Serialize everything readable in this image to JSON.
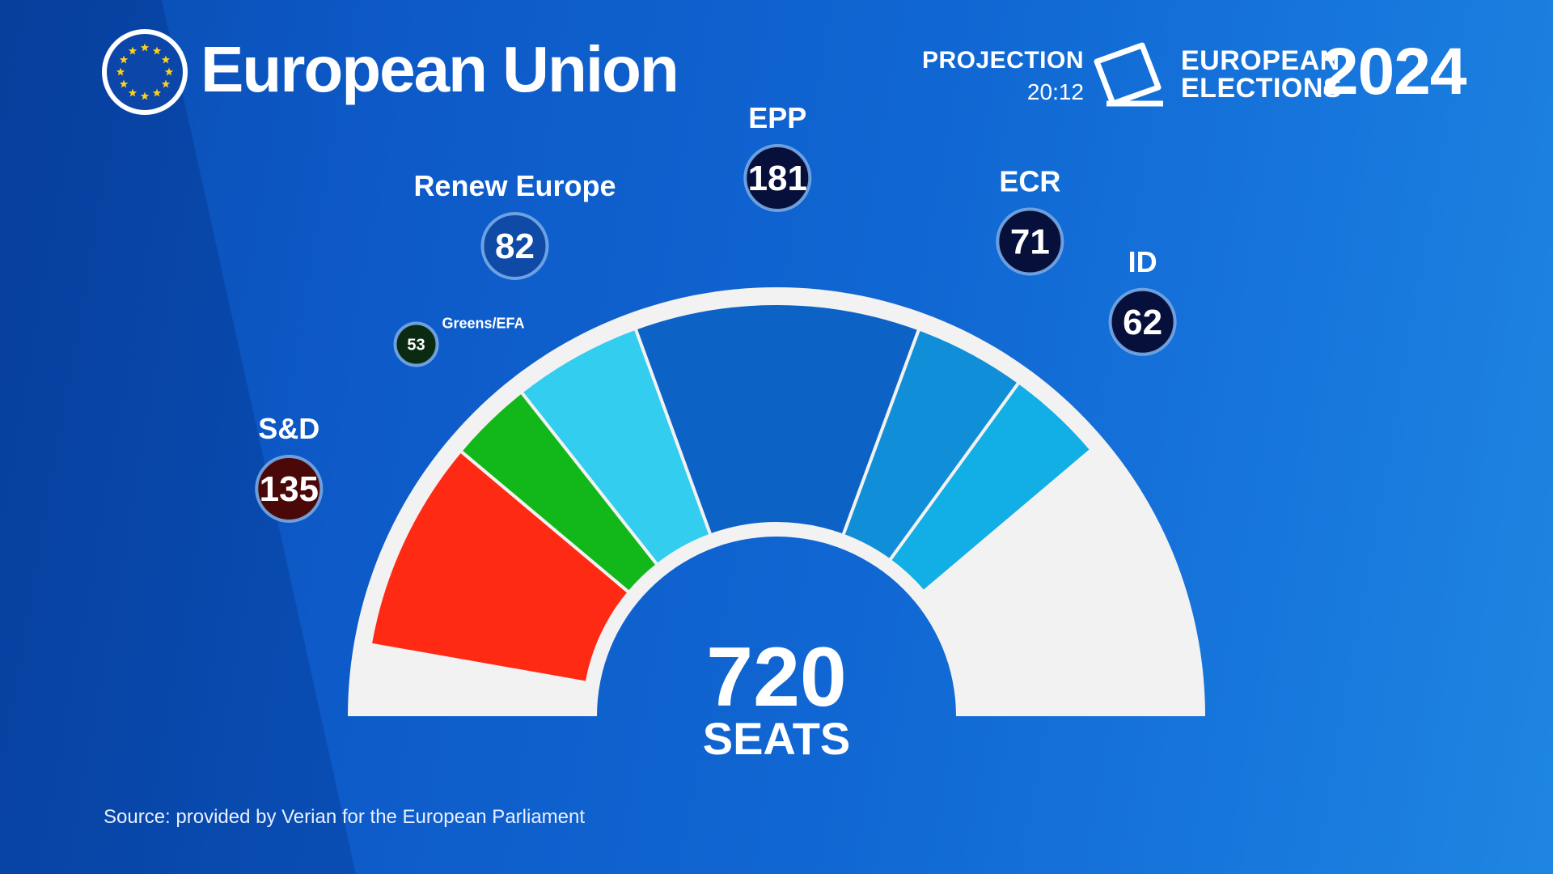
{
  "header": {
    "title": "European Union",
    "projection_label": "PROJECTION",
    "projection_time": "20:12",
    "elections_line1": "EUROPEAN",
    "elections_line2": "ELECTIONS",
    "year": "2024"
  },
  "source": "Source: provided by Verian for the European Parliament",
  "chart_data": {
    "type": "pie",
    "subtype": "parliament-hemicycle",
    "total_seats": 720,
    "center_value": "720",
    "center_label": "SEATS",
    "series": [
      {
        "name": "S&D",
        "value": 135,
        "color": "#ff2a14",
        "badge_color": "#4a0808"
      },
      {
        "name": "Greens/EFA",
        "value": 53,
        "color": "#12b81a",
        "badge_color": "#0b2a12"
      },
      {
        "name": "Renew Europe",
        "value": 82,
        "color": "#33cdf0",
        "badge_color": "#0e4aa6"
      },
      {
        "name": "EPP",
        "value": 181,
        "color": "#0d62c6",
        "badge_color": "#07103a"
      },
      {
        "name": "ECR",
        "value": 71,
        "color": "#108fd8",
        "badge_color": "#07103a"
      },
      {
        "name": "ID",
        "value": 62,
        "color": "#12aee6",
        "badge_color": "#07103a"
      }
    ]
  }
}
